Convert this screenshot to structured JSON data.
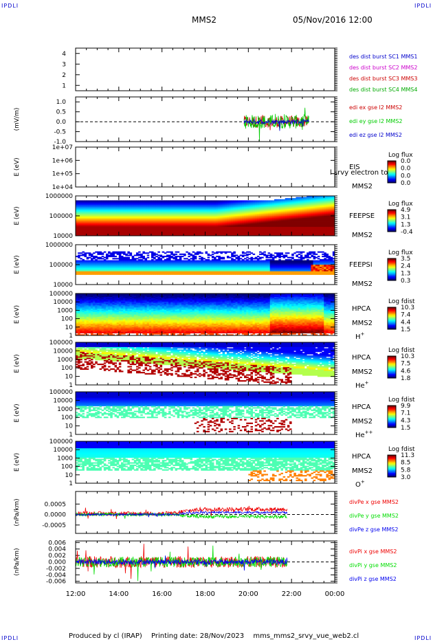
{
  "header": {
    "corner_label": "IPDLI",
    "spacecraft": "MMS2",
    "datetime": "05/Nov/2016 12:00"
  },
  "footer": {
    "produced_by": "Produced by cl (IRAP)",
    "printing_date": "Printing date: 28/Nov/2023",
    "filename": "mms_mms2_srvy_vue_web2.cl"
  },
  "time_axis": {
    "ticks": [
      "12:00",
      "14:00",
      "16:00",
      "18:00",
      "20:00",
      "22:00",
      "00:00"
    ],
    "start_hour": 12,
    "end_hour": 24
  },
  "chart_data": [
    {
      "type": "line",
      "id": "des-dist-burst",
      "ylim": [
        0.5,
        4.5
      ],
      "yticks": [
        "1",
        "2",
        "3",
        "4"
      ],
      "legend": [
        {
          "text": "des dist burst SC1 MMS1",
          "color": "#0000cc"
        },
        {
          "text": "des dist burst SC2 MMS2",
          "color": "#cc00cc"
        },
        {
          "text": "des dist burst SC3 MMS3",
          "color": "#cc0000"
        },
        {
          "text": "des dist burst SC4 MMS4",
          "color": "#00aa00"
        }
      ],
      "series": []
    },
    {
      "type": "line",
      "id": "edi-e",
      "ylabel": "(mV/m)",
      "ylim": [
        -1.0,
        1.25
      ],
      "yticks": [
        "1.0",
        "0.5",
        "0.0",
        "-0.5",
        "-1.0"
      ],
      "ytick_values": [
        1.0,
        0.5,
        0.0,
        -0.5,
        -1.0
      ],
      "data_range_hours": [
        19.8,
        22.8
      ],
      "series": [
        {
          "name": "edi ex gse l2 MMS2",
          "color": "#cc0000",
          "amplitude": 0.3
        },
        {
          "name": "edi ey gse l2 MMS2",
          "color": "#00cc00",
          "amplitude": 0.35
        },
        {
          "name": "edi ez gse l2 MMS2",
          "color": "#0000cc",
          "amplitude": 0.12
        }
      ]
    },
    {
      "type": "heatmap",
      "id": "eis",
      "ylabel": "E (eV)",
      "ytick_labels": [
        "1e+07",
        "1e+06",
        "1e+05",
        "1e+04"
      ],
      "instrument": [
        "EIS"
      ],
      "overlay_text": "l srvy electron to",
      "spacecraft": "MMS2",
      "colorbar_title": "Log flux",
      "colorbar_ticks": [
        "0.0",
        "0.0",
        "0.0",
        "0.0"
      ],
      "pattern": "empty"
    },
    {
      "type": "heatmap",
      "id": "feepse",
      "ylabel": "E (eV)",
      "ytick_labels": [
        "1000000",
        "100000",
        "10000"
      ],
      "instrument": [
        "FEEPSE"
      ],
      "spacecraft": "MMS2",
      "colorbar_title": "Log flux",
      "colorbar_ticks": [
        "4.9",
        "3.1",
        "1.3",
        "-0.4"
      ],
      "pattern": "feepse"
    },
    {
      "type": "heatmap",
      "id": "feepsi",
      "ylabel": "E (eV)",
      "ytick_labels": [
        "1000000",
        "100000",
        "10000"
      ],
      "instrument": [
        "FEEPSI"
      ],
      "spacecraft": "MMS2",
      "colorbar_title": "Log flux",
      "colorbar_ticks": [
        "3.5",
        "2.4",
        "1.3",
        "0.3"
      ],
      "pattern": "feepsi"
    },
    {
      "type": "heatmap",
      "id": "hpca-h",
      "ylabel": "E (eV)",
      "ytick_labels": [
        "100000",
        "10000",
        "1000",
        "100",
        "10",
        "1"
      ],
      "instrument": [
        "HPCA",
        "MMS2"
      ],
      "species": "H",
      "charge": "+",
      "colorbar_title": "Log fdist",
      "colorbar_ticks": [
        "10.3",
        "7.4",
        "4.4",
        "1.5"
      ],
      "pattern": "hpca_h"
    },
    {
      "type": "heatmap",
      "id": "hpca-he",
      "ylabel": "E (eV)",
      "ytick_labels": [
        "100000",
        "10000",
        "1000",
        "100",
        "10",
        "1"
      ],
      "instrument": [
        "HPCA",
        "MMS2"
      ],
      "species": "He",
      "charge": "+",
      "colorbar_title": "Log fdist",
      "colorbar_ticks": [
        "10.3",
        "7.5",
        "4.6",
        "1.8"
      ],
      "pattern": "hpca_he"
    },
    {
      "type": "heatmap",
      "id": "hpca-hepp",
      "ylabel": "E (eV)",
      "ytick_labels": [
        "100000",
        "10000",
        "1000",
        "100",
        "10",
        "1"
      ],
      "instrument": [
        "HPCA",
        "MMS2"
      ],
      "species": "He",
      "charge": "++",
      "colorbar_title": "Log fdist",
      "colorbar_ticks": [
        "9.9",
        "7.1",
        "4.3",
        "1.5"
      ],
      "pattern": "hpca_hepp"
    },
    {
      "type": "heatmap",
      "id": "hpca-o",
      "ylabel": "E (eV)",
      "ytick_labels": [
        "100000",
        "10000",
        "1000",
        "100",
        "10",
        "1"
      ],
      "instrument": [
        "HPCA",
        "MMS2"
      ],
      "species": "O",
      "charge": "+",
      "colorbar_title": "Log fdist",
      "colorbar_ticks": [
        "11.3",
        "8.5",
        "5.8",
        "3.0"
      ],
      "pattern": "hpca_o"
    },
    {
      "type": "line",
      "id": "divpe",
      "ylabel": "(nPa/km)",
      "ylim": [
        -0.0009,
        0.0011
      ],
      "yticks": [
        "0.0005",
        "0.0000",
        "-0.0005"
      ],
      "ytick_values": [
        0.0005,
        0.0,
        -0.0005
      ],
      "data_range_hours": [
        12.0,
        21.8
      ],
      "series": [
        {
          "name": "divPe x gse MMS2",
          "color": "#ee0000",
          "amplitude": 0.0001
        },
        {
          "name": "divPe y gse MMS2",
          "color": "#00dd00",
          "amplitude": 8e-05
        },
        {
          "name": "divPe z gse MMS2",
          "color": "#0000ee",
          "amplitude": 5e-05
        }
      ]
    },
    {
      "type": "line",
      "id": "divpi",
      "ylabel": "(nPa/km)",
      "ylim": [
        -0.0065,
        0.0065
      ],
      "yticks": [
        "0.006",
        "0.004",
        "0.002",
        "0.000",
        "-0.002",
        "-0.004",
        "-0.006"
      ],
      "ytick_values": [
        0.006,
        0.004,
        0.002,
        0.0,
        -0.002,
        -0.004,
        -0.006
      ],
      "data_range_hours": [
        12.0,
        21.8
      ],
      "series": [
        {
          "name": "divPi x gse MMS2",
          "color": "#ee0000",
          "amplitude": 0.0018
        },
        {
          "name": "divPi y gse MMS2",
          "color": "#00dd00",
          "amplitude": 0.0016
        },
        {
          "name": "divPi z gse MMS2",
          "color": "#0000ee",
          "amplitude": 0.0008
        }
      ]
    }
  ]
}
